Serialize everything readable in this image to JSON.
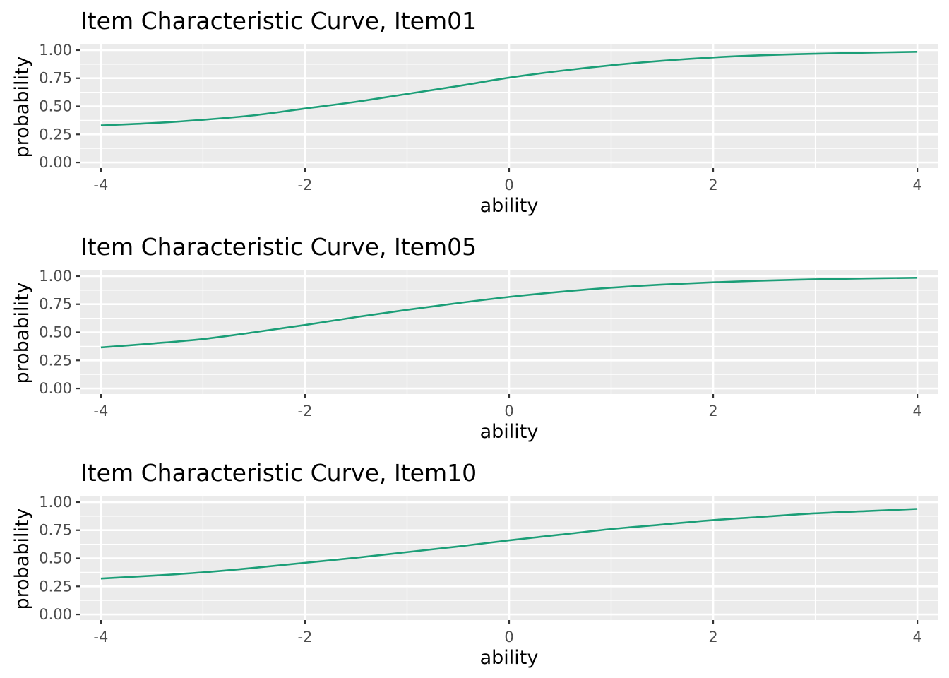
{
  "chart_data": [
    {
      "type": "line",
      "title": "Item Characteristic Curve, Item01",
      "xlabel": "ability",
      "ylabel": "probability",
      "xlim": [
        -4.2,
        4.2
      ],
      "ylim": [
        -0.05,
        1.05
      ],
      "x_ticks": [
        -4,
        -2,
        0,
        2,
        4
      ],
      "x_tick_labels": [
        "-4",
        "-2",
        "0",
        "2",
        "4"
      ],
      "y_ticks": [
        0,
        0.25,
        0.5,
        0.75,
        1
      ],
      "y_tick_labels": [
        "0.00",
        "0.25",
        "0.50",
        "0.75",
        "1.00"
      ],
      "grid": true,
      "line_color": "#1b9e77",
      "series": [
        {
          "x": [
            -4,
            -3.5,
            -3,
            -2.5,
            -2,
            -1.5,
            -1,
            -0.5,
            0,
            0.5,
            1,
            1.5,
            2,
            2.5,
            3,
            3.5,
            4
          ],
          "values": [
            0.33,
            0.35,
            0.38,
            0.42,
            0.48,
            0.54,
            0.61,
            0.68,
            0.755,
            0.815,
            0.865,
            0.905,
            0.935,
            0.955,
            0.968,
            0.977,
            0.985
          ]
        }
      ]
    },
    {
      "type": "line",
      "title": "Item Characteristic Curve, Item05",
      "xlabel": "ability",
      "ylabel": "probability",
      "xlim": [
        -4.2,
        4.2
      ],
      "ylim": [
        -0.05,
        1.05
      ],
      "x_ticks": [
        -4,
        -2,
        0,
        2,
        4
      ],
      "x_tick_labels": [
        "-4",
        "-2",
        "0",
        "2",
        "4"
      ],
      "y_ticks": [
        0,
        0.25,
        0.5,
        0.75,
        1
      ],
      "y_tick_labels": [
        "0.00",
        "0.25",
        "0.50",
        "0.75",
        "1.00"
      ],
      "grid": true,
      "line_color": "#1b9e77",
      "series": [
        {
          "x": [
            -4,
            -3.5,
            -3,
            -2.5,
            -2,
            -1.5,
            -1,
            -0.5,
            0,
            0.5,
            1,
            1.5,
            2,
            2.5,
            3,
            3.5,
            4
          ],
          "values": [
            0.365,
            0.4,
            0.44,
            0.5,
            0.565,
            0.635,
            0.7,
            0.76,
            0.815,
            0.86,
            0.897,
            0.925,
            0.945,
            0.96,
            0.972,
            0.98,
            0.985
          ]
        }
      ]
    },
    {
      "type": "line",
      "title": "Item Characteristic Curve, Item10",
      "xlabel": "ability",
      "ylabel": "probability",
      "xlim": [
        -4.2,
        4.2
      ],
      "ylim": [
        -0.05,
        1.05
      ],
      "x_ticks": [
        -4,
        -2,
        0,
        2,
        4
      ],
      "x_tick_labels": [
        "-4",
        "-2",
        "0",
        "2",
        "4"
      ],
      "y_ticks": [
        0,
        0.25,
        0.5,
        0.75,
        1
      ],
      "y_tick_labels": [
        "0.00",
        "0.25",
        "0.50",
        "0.75",
        "1.00"
      ],
      "grid": true,
      "line_color": "#1b9e77",
      "series": [
        {
          "x": [
            -4,
            -3.5,
            -3,
            -2.5,
            -2,
            -1.5,
            -1,
            -0.5,
            0,
            0.5,
            1,
            1.5,
            2,
            2.5,
            3,
            3.5,
            4
          ],
          "values": [
            0.32,
            0.345,
            0.375,
            0.415,
            0.46,
            0.505,
            0.555,
            0.605,
            0.66,
            0.71,
            0.76,
            0.8,
            0.84,
            0.87,
            0.9,
            0.92,
            0.94
          ]
        }
      ]
    }
  ]
}
